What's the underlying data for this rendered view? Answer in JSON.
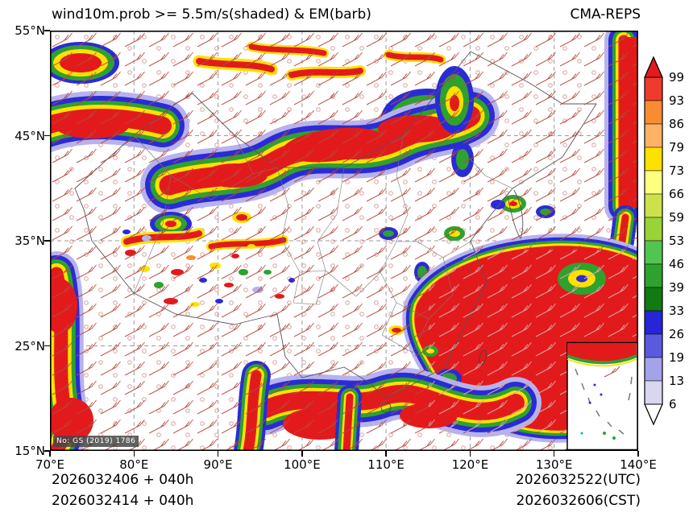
{
  "header": {
    "title": "wind10m.prob >= 5.5m/s(shaded) & EM(barb)",
    "model": "CMA-REPS"
  },
  "axes": {
    "lat_labels": [
      "55°N",
      "45°N",
      "35°N",
      "25°N",
      "15°N"
    ],
    "lon_labels": [
      "70°E",
      "80°E",
      "90°E",
      "100°E",
      "110°E",
      "120°E",
      "130°E",
      "140°E"
    ]
  },
  "colorbar": {
    "labels": [
      "99",
      "93",
      "86",
      "79",
      "73",
      "66",
      "59",
      "53",
      "46",
      "39",
      "33",
      "26",
      "19",
      "13",
      "6"
    ],
    "band_colors_top_to_bottom": [
      "#ef3b2c",
      "#fb8b33",
      "#ffb265",
      "#ffe100",
      "#ffff80",
      "#cde24a",
      "#9ad337",
      "#52c452",
      "#2fa12f",
      "#117a11",
      "#2626d8",
      "#5a5ae0",
      "#a3a3e8",
      "#d9d6f2"
    ],
    "over_color": "#e31a1c",
    "under_color": "#ffffff"
  },
  "footer": {
    "init_utc_line": "2026032406 + 040h",
    "init_cst_line": "2026032414 + 040h",
    "valid_utc": "2026032522(UTC)",
    "valid_cst": "2026032606(CST)"
  },
  "map": {
    "approval_note": "No: GS (2019) 1786",
    "barb_color": "#b5483c",
    "grid_color": "#999999"
  },
  "chart_data": {
    "type": "heatmap",
    "title": "wind10m.prob >= 5.5m/s(shaded) & EM(barb)",
    "model": "CMA-REPS",
    "field": "Probability of 10 m wind speed >= 5.5 m/s (%)",
    "overlay": "ensemble-mean (EM) wind barbs",
    "x_axis": {
      "tick_labels": [
        "70°E",
        "80°E",
        "90°E",
        "100°E",
        "110°E",
        "120°E",
        "130°E",
        "140°E"
      ],
      "range_deg_east": [
        70,
        140
      ]
    },
    "y_axis": {
      "tick_labels": [
        "55°N",
        "45°N",
        "35°N",
        "25°N",
        "15°N"
      ],
      "range_deg_north": [
        15,
        55
      ]
    },
    "colorbar_levels_percent": [
      6,
      13,
      19,
      26,
      33,
      39,
      46,
      53,
      59,
      66,
      73,
      79,
      86,
      93,
      99
    ],
    "colorbar_colors_low_to_high": [
      "#d9d6f2",
      "#a3a3e8",
      "#5a5ae0",
      "#2626d8",
      "#117a11",
      "#2fa12f",
      "#52c452",
      "#9ad337",
      "#cde24a",
      "#ffff80",
      "#ffe100",
      "#ffb265",
      "#fb8b33",
      "#ef3b2c"
    ],
    "colorbar_extend": "both",
    "init_times": [
      "2026032406 + 040h",
      "2026032414 + 040h"
    ],
    "valid_times": [
      "2026032522(UTC)",
      "2026032606(CST)"
    ],
    "high_probability_regions": [
      {
        "area": "northwest Xinjiang (70-78E, 43-47N)",
        "max_percent": 99
      },
      {
        "area": "northern China band along 40-46N from 85E to 120E",
        "max_percent": 99
      },
      {
        "area": "far-east edge 137-140E, 38-52N",
        "max_percent": 99
      },
      {
        "area": "East China Sea / NW Pacific (112-140E, 18-32N)",
        "max_percent": 99
      },
      {
        "area": "Indochina and southern Yunnan (95-112E, 15-20N)",
        "max_percent": 99
      },
      {
        "area": "western edge 70-74E, 15-26N",
        "max_percent": 99
      },
      {
        "area": "Tibetan Plateau scattered patches (78-100E, 28-36N)",
        "max_percent": 80
      }
    ],
    "grid": true,
    "legend_position": "right"
  }
}
